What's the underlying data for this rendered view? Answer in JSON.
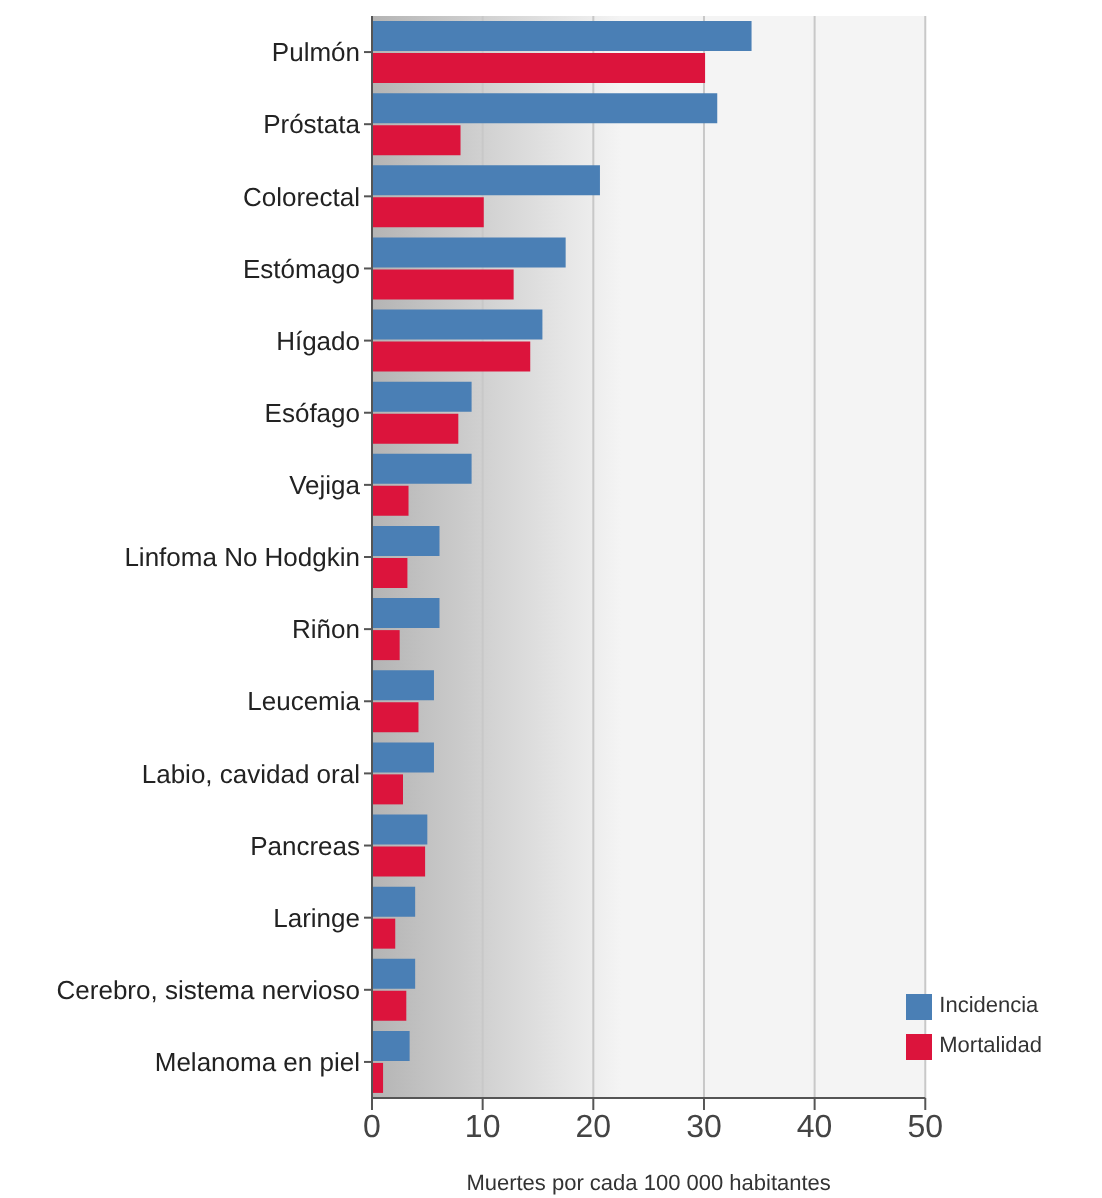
{
  "chart_data": {
    "type": "bar",
    "orientation": "horizontal",
    "xlabel": "Muertes por cada 100 000 habitantes",
    "categories": [
      "Pulmón",
      "Próstata",
      "Colorectal",
      "Estómago",
      "Hígado",
      "Esófago",
      "Vejiga",
      "Linfoma No Hodgkin",
      "Riñon",
      "Leucemia",
      "Labio, cavidad oral",
      "Pancreas",
      "Laringe",
      "Cerebro, sistema nervioso",
      "Melanoma en piel"
    ],
    "series": [
      {
        "name": "Incidencia",
        "color": "#4a7fb5",
        "values": [
          34.3,
          31.2,
          20.6,
          17.5,
          15.4,
          9.0,
          9.0,
          6.1,
          6.1,
          5.6,
          5.6,
          5.0,
          3.9,
          3.9,
          3.4
        ]
      },
      {
        "name": "Mortalidad",
        "color": "#dc143c",
        "values": [
          30.1,
          8.0,
          10.1,
          12.8,
          14.3,
          7.8,
          3.3,
          3.2,
          2.5,
          4.2,
          2.8,
          4.8,
          2.1,
          3.1,
          1.0
        ]
      }
    ],
    "xlim": [
      0,
      50
    ],
    "xticks": [
      0,
      10,
      20,
      30,
      40,
      50
    ],
    "grid": "x",
    "legend": "bottom right"
  }
}
